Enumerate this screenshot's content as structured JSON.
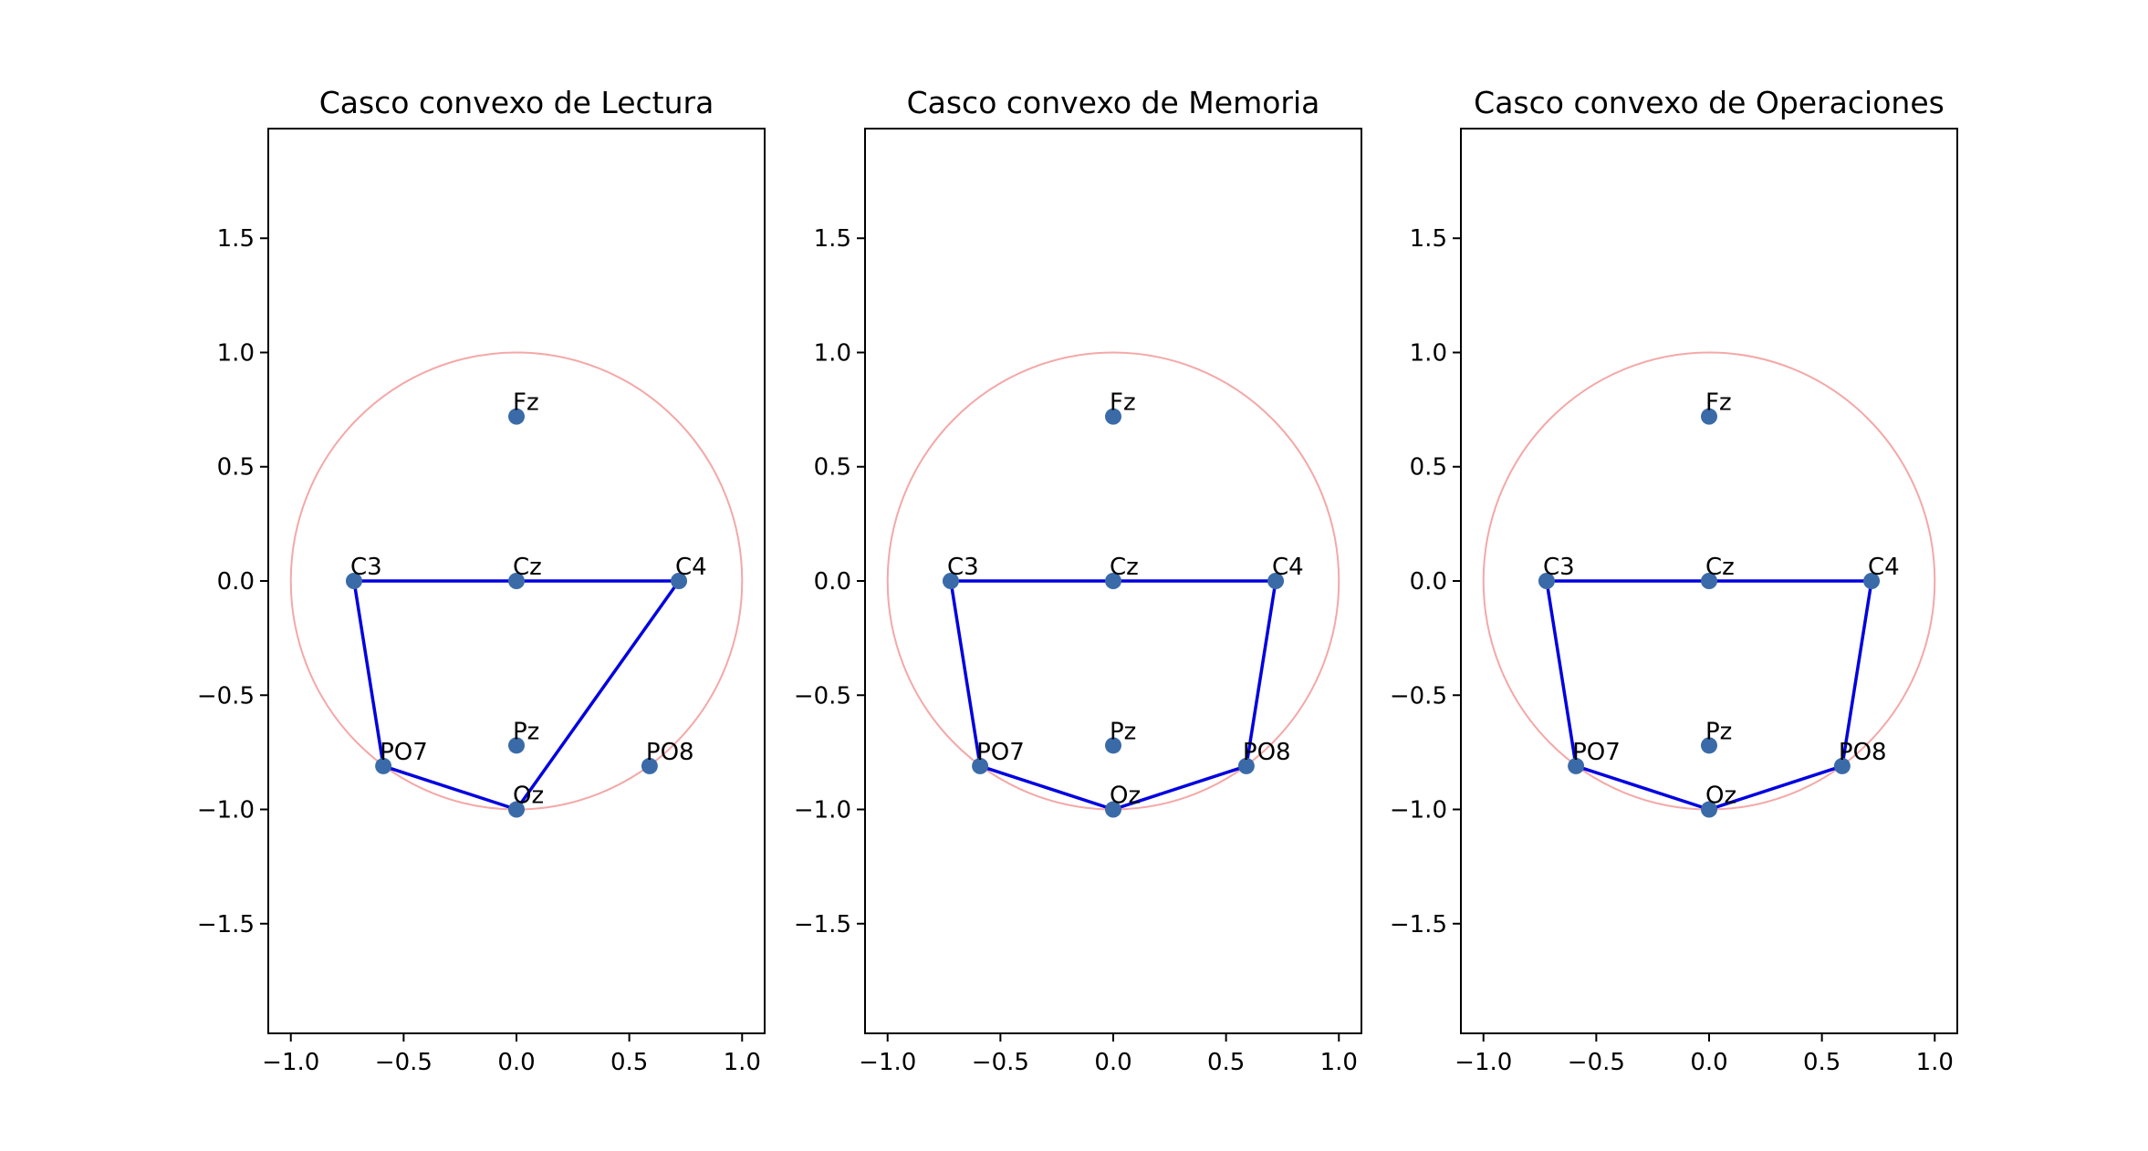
{
  "colors": {
    "point": "#3a6ba8",
    "hull": "#0000e0",
    "circle": "#f4a8a8",
    "axes": "#000000"
  },
  "chart_data": [
    {
      "type": "scatter",
      "title": "Casco convexo de Lectura",
      "xlim": [
        -1.1,
        1.1
      ],
      "ylim": [
        -1.98,
        1.98
      ],
      "xticks": [
        -1.0,
        -0.5,
        0.0,
        0.5,
        1.0
      ],
      "yticks": [
        -1.5,
        -1.0,
        -0.5,
        0.0,
        0.5,
        1.0,
        1.5
      ],
      "xtick_labels": [
        "−1.0",
        "−0.5",
        "0.0",
        "0.5",
        "1.0"
      ],
      "ytick_labels": [
        "−1.5",
        "−1.0",
        "−0.5",
        "0.0",
        "0.5",
        "1.0",
        "1.5"
      ],
      "circle": {
        "cx": 0,
        "cy": 0,
        "r": 1
      },
      "points": [
        {
          "label": "Fz",
          "x": 0.0,
          "y": 0.72
        },
        {
          "label": "C3",
          "x": -0.72,
          "y": 0.0
        },
        {
          "label": "Cz",
          "x": 0.0,
          "y": 0.0
        },
        {
          "label": "C4",
          "x": 0.72,
          "y": 0.0
        },
        {
          "label": "Pz",
          "x": 0.0,
          "y": -0.72
        },
        {
          "label": "PO7",
          "x": -0.59,
          "y": -0.81
        },
        {
          "label": "PO8",
          "x": 0.59,
          "y": -0.81
        },
        {
          "label": "Oz",
          "x": 0.0,
          "y": -1.0
        }
      ],
      "hull": [
        "C3",
        "C4",
        "Oz",
        "PO7",
        "C3"
      ]
    },
    {
      "type": "scatter",
      "title": "Casco convexo de Memoria",
      "xlim": [
        -1.1,
        1.1
      ],
      "ylim": [
        -1.98,
        1.98
      ],
      "xticks": [
        -1.0,
        -0.5,
        0.0,
        0.5,
        1.0
      ],
      "yticks": [
        -1.5,
        -1.0,
        -0.5,
        0.0,
        0.5,
        1.0,
        1.5
      ],
      "xtick_labels": [
        "−1.0",
        "−0.5",
        "0.0",
        "0.5",
        "1.0"
      ],
      "ytick_labels": [
        "−1.5",
        "−1.0",
        "−0.5",
        "0.0",
        "0.5",
        "1.0",
        "1.5"
      ],
      "circle": {
        "cx": 0,
        "cy": 0,
        "r": 1
      },
      "points": [
        {
          "label": "Fz",
          "x": 0.0,
          "y": 0.72
        },
        {
          "label": "C3",
          "x": -0.72,
          "y": 0.0
        },
        {
          "label": "Cz",
          "x": 0.0,
          "y": 0.0
        },
        {
          "label": "C4",
          "x": 0.72,
          "y": 0.0
        },
        {
          "label": "Pz",
          "x": 0.0,
          "y": -0.72
        },
        {
          "label": "PO7",
          "x": -0.59,
          "y": -0.81
        },
        {
          "label": "PO8",
          "x": 0.59,
          "y": -0.81
        },
        {
          "label": "Oz",
          "x": 0.0,
          "y": -1.0
        }
      ],
      "hull": [
        "C3",
        "C4",
        "PO8",
        "Oz",
        "PO7",
        "C3"
      ]
    },
    {
      "type": "scatter",
      "title": "Casco convexo de Operaciones",
      "xlim": [
        -1.1,
        1.1
      ],
      "ylim": [
        -1.98,
        1.98
      ],
      "xticks": [
        -1.0,
        -0.5,
        0.0,
        0.5,
        1.0
      ],
      "yticks": [
        -1.5,
        -1.0,
        -0.5,
        0.0,
        0.5,
        1.0,
        1.5
      ],
      "xtick_labels": [
        "−1.0",
        "−0.5",
        "0.0",
        "0.5",
        "1.0"
      ],
      "ytick_labels": [
        "−1.5",
        "−1.0",
        "−0.5",
        "0.0",
        "0.5",
        "1.0",
        "1.5"
      ],
      "circle": {
        "cx": 0,
        "cy": 0,
        "r": 1
      },
      "points": [
        {
          "label": "Fz",
          "x": 0.0,
          "y": 0.72
        },
        {
          "label": "C3",
          "x": -0.72,
          "y": 0.0
        },
        {
          "label": "Cz",
          "x": 0.0,
          "y": 0.0
        },
        {
          "label": "C4",
          "x": 0.72,
          "y": 0.0
        },
        {
          "label": "Pz",
          "x": 0.0,
          "y": -0.72
        },
        {
          "label": "PO7",
          "x": -0.59,
          "y": -0.81
        },
        {
          "label": "PO8",
          "x": 0.59,
          "y": -0.81
        },
        {
          "label": "Oz",
          "x": 0.0,
          "y": -1.0
        }
      ],
      "hull": [
        "C3",
        "C4",
        "PO8",
        "Oz",
        "PO7",
        "C3"
      ]
    }
  ]
}
